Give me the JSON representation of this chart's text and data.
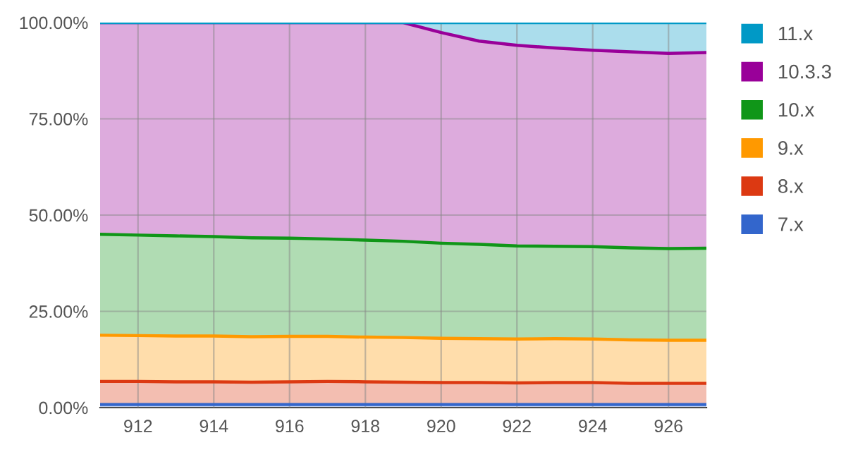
{
  "chart_data": {
    "type": "area",
    "stacked": true,
    "x": [
      911,
      912,
      913,
      914,
      915,
      916,
      917,
      918,
      919,
      920,
      921,
      922,
      923,
      924,
      925,
      926,
      927
    ],
    "series": [
      {
        "name": "7.x",
        "color": "#3366cc",
        "values": [
          0.8,
          0.8,
          0.8,
          0.8,
          0.8,
          0.8,
          0.8,
          0.8,
          0.8,
          0.8,
          0.8,
          0.8,
          0.8,
          0.8,
          0.8,
          0.8,
          0.8
        ]
      },
      {
        "name": "8.x",
        "color": "#dc3912",
        "values": [
          6.0,
          6.0,
          5.9,
          5.9,
          5.8,
          5.9,
          6.0,
          5.9,
          5.8,
          5.7,
          5.7,
          5.6,
          5.7,
          5.7,
          5.5,
          5.5,
          5.5
        ]
      },
      {
        "name": "9.x",
        "color": "#ff9900",
        "values": [
          12.0,
          11.9,
          11.9,
          11.9,
          11.8,
          11.8,
          11.7,
          11.6,
          11.6,
          11.5,
          11.4,
          11.4,
          11.4,
          11.3,
          11.3,
          11.2,
          11.2
        ]
      },
      {
        "name": "10.x",
        "color": "#109618",
        "values": [
          26.2,
          26.1,
          26.0,
          25.8,
          25.7,
          25.5,
          25.3,
          25.2,
          25.0,
          24.7,
          24.5,
          24.2,
          24.0,
          24.0,
          23.9,
          23.8,
          23.9
        ]
      },
      {
        "name": "10.3.3",
        "color": "#990099",
        "values": [
          55.0,
          55.2,
          55.4,
          55.6,
          55.9,
          56.0,
          56.2,
          56.5,
          56.8,
          54.7,
          52.8,
          52.1,
          51.5,
          51.0,
          50.9,
          50.7,
          50.8
        ]
      },
      {
        "name": "11.x",
        "color": "#0099c6",
        "values": [
          0,
          0,
          0,
          0,
          0,
          0,
          0,
          0,
          0,
          2.6,
          4.8,
          5.9,
          6.6,
          7.2,
          7.6,
          8.0,
          7.8
        ]
      }
    ],
    "xlim": [
      911,
      927
    ],
    "xticks": [
      912,
      914,
      916,
      918,
      920,
      922,
      924,
      926
    ],
    "ylim": [
      0,
      100
    ],
    "yticks": [
      {
        "value": 0,
        "label": "0.00%"
      },
      {
        "value": 25,
        "label": "25.00%"
      },
      {
        "value": 50,
        "label": "50.00%"
      },
      {
        "value": 75,
        "label": "75.00%"
      },
      {
        "value": 100,
        "label": "100.00%"
      }
    ],
    "grid": true,
    "legend": "top right",
    "marker": "none",
    "line_style": "solid"
  }
}
